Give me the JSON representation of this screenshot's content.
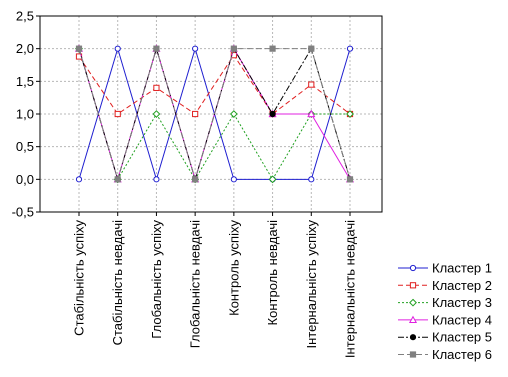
{
  "chart_data": {
    "type": "line",
    "categories": [
      "Стабільність успіху",
      "Стабільність невдачі",
      "Глобальність успіху",
      "Глобальність невдачі",
      "Контроль успіху",
      "Контроль невдачі",
      "Інтернальність успіху",
      "Інтернальність невдачі"
    ],
    "ylim": [
      -0.5,
      2.5
    ],
    "yticks": [
      "-0,5",
      "0,0",
      "0,5",
      "1,0",
      "1,5",
      "2,0",
      "2,5"
    ],
    "grid": true,
    "legend_position": "right",
    "series": [
      {
        "name": "Кластер  1",
        "color": "#1f1fd0",
        "dash": "",
        "marker": "circle-open",
        "values": [
          0,
          2,
          0,
          2,
          0,
          0,
          0,
          2
        ]
      },
      {
        "name": "Кластер  2",
        "color": "#e02020",
        "dash": "5,3",
        "marker": "square-open",
        "values": [
          1.88,
          1.0,
          1.4,
          1.0,
          1.9,
          1.0,
          1.45,
          1.0
        ]
      },
      {
        "name": "Кластер  3",
        "color": "#20a020",
        "dash": "2,2",
        "marker": "diamond-open",
        "values": [
          2,
          0,
          1,
          0,
          1,
          0,
          1,
          1
        ]
      },
      {
        "name": "Кластер  4",
        "color": "#e020e0",
        "dash": "",
        "marker": "triangle-open",
        "values": [
          2,
          0,
          2,
          0,
          2,
          1,
          1,
          0
        ]
      },
      {
        "name": "Кластер  5",
        "color": "#000000",
        "dash": "6,2,2,2",
        "marker": "circle-filled",
        "values": [
          2,
          0,
          2,
          0,
          2,
          1,
          2,
          0
        ]
      },
      {
        "name": "Кластер  6",
        "color": "#808080",
        "dash": "6,3",
        "marker": "square-filled",
        "values": [
          2,
          0,
          2,
          0,
          2,
          2,
          2,
          0
        ]
      }
    ]
  }
}
